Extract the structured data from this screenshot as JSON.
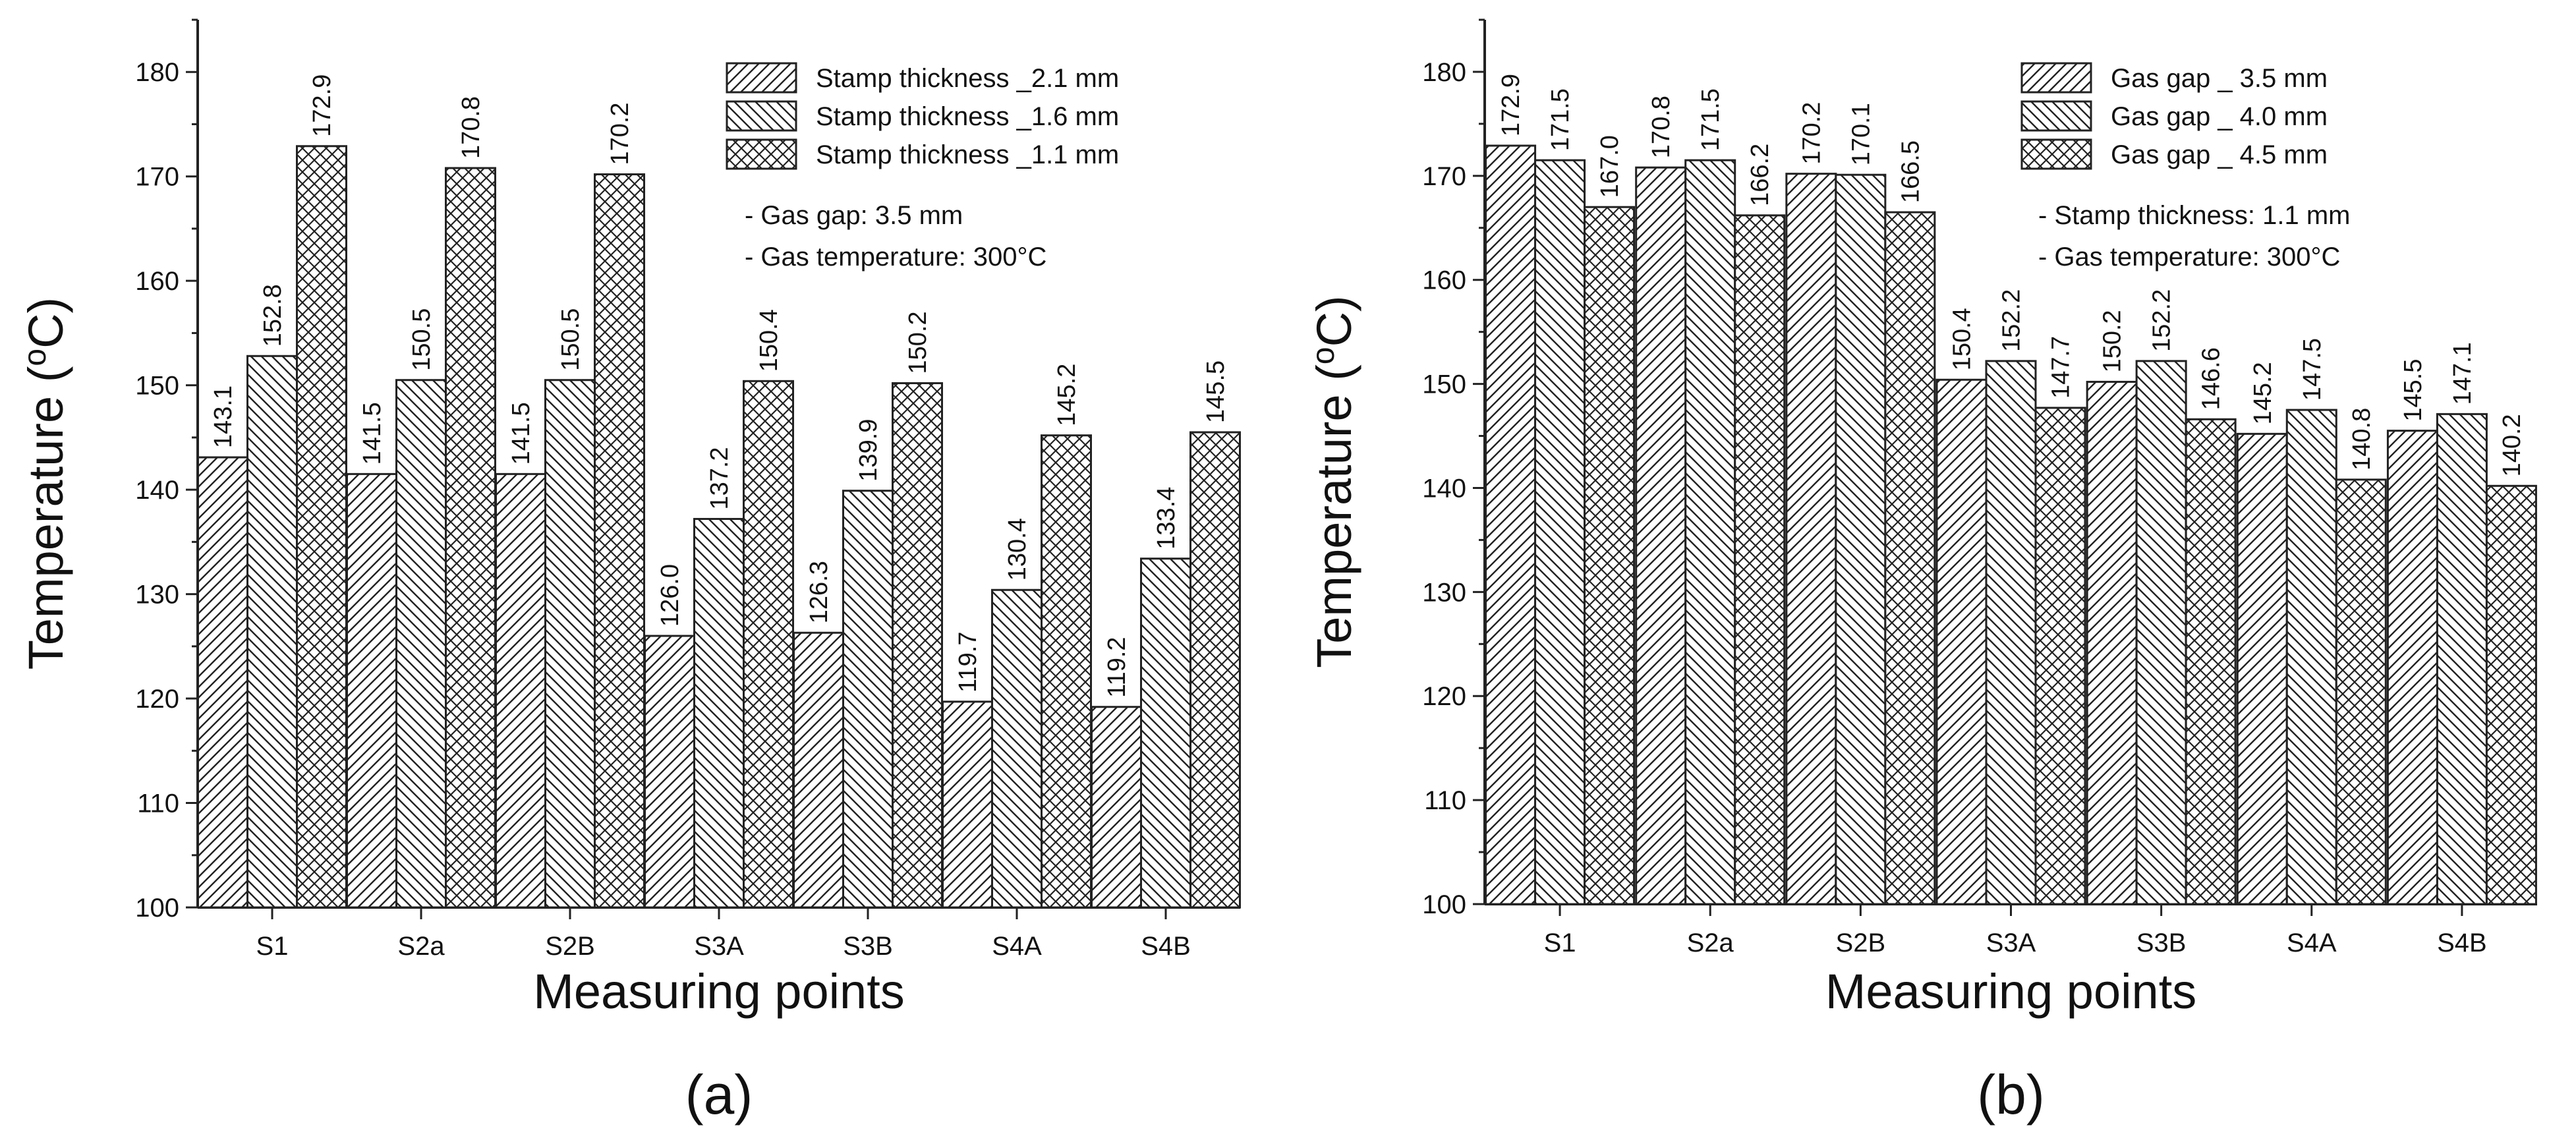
{
  "figure": {
    "panel_labels": [
      "(a)",
      "(b)"
    ]
  },
  "chart_data": [
    {
      "type": "bar",
      "panel": "(a)",
      "categories": [
        "S1",
        "S2a",
        "S2B",
        "S3A",
        "S3B",
        "S4A",
        "S4B"
      ],
      "series": [
        {
          "name": "Stamp thickness _2.1 mm",
          "pattern": "hatch-fwd",
          "values": [
            143.1,
            141.5,
            141.5,
            126.0,
            126.3,
            119.7,
            119.2
          ]
        },
        {
          "name": "Stamp thickness _1.6 mm",
          "pattern": "hatch-back",
          "values": [
            152.8,
            150.5,
            150.5,
            137.2,
            139.9,
            130.4,
            133.4
          ]
        },
        {
          "name": "Stamp thickness _1.1 mm",
          "pattern": "crosshatch",
          "values": [
            172.9,
            170.8,
            170.2,
            150.4,
            150.2,
            145.2,
            145.5
          ]
        }
      ],
      "data_labels": [
        [
          "143.1",
          "141.5",
          "141.5",
          "126.0",
          "126.3",
          "119.7",
          "119.2"
        ],
        [
          "152.8",
          "150.5",
          "150.5",
          "137.2",
          "139.9",
          "130.4",
          "133.4"
        ],
        [
          "172.9",
          "170.8",
          "170.2",
          "150.4",
          "150.2",
          "145.2",
          "145.5"
        ]
      ],
      "annotations": [
        "- Gas gap: 3.5 mm",
        "- Gas temperature: 300°C"
      ],
      "xlabel": "Measuring points",
      "ylabel": "Temperature (°C)",
      "ylim": [
        100,
        185
      ],
      "yticks": [
        "100",
        "110",
        "120",
        "130",
        "140",
        "150",
        "160",
        "170",
        "180"
      ],
      "legend_position": "top-right"
    },
    {
      "type": "bar",
      "panel": "(b)",
      "categories": [
        "S1",
        "S2a",
        "S2B",
        "S3A",
        "S3B",
        "S4A",
        "S4B"
      ],
      "series": [
        {
          "name": "Gas gap _ 3.5 mm",
          "pattern": "hatch-fwd",
          "values": [
            172.9,
            170.8,
            170.2,
            150.4,
            150.2,
            145.2,
            145.5
          ]
        },
        {
          "name": "Gas gap _ 4.0 mm",
          "pattern": "hatch-back",
          "values": [
            171.5,
            171.5,
            170.1,
            152.2,
            152.2,
            147.5,
            147.1
          ]
        },
        {
          "name": "Gas gap _ 4.5 mm",
          "pattern": "crosshatch",
          "values": [
            167.0,
            166.2,
            166.5,
            147.7,
            146.6,
            140.8,
            140.2
          ]
        }
      ],
      "data_labels": [
        [
          "172.9",
          "170.8",
          "170.2",
          "150.4",
          "150.2",
          "145.2",
          "145.5"
        ],
        [
          "171.5",
          "171.5",
          "170.1",
          "152.2",
          "152.2",
          "147.5",
          "147.1"
        ],
        [
          "167.0",
          "166.2",
          "166.5",
          "147.7",
          "146.6",
          "140.8",
          "140.2"
        ]
      ],
      "annotations": [
        "- Stamp thickness: 1.1 mm",
        "- Gas temperature: 300°C"
      ],
      "xlabel": "Measuring points",
      "ylabel": "Temperature (°C)",
      "ylim": [
        100,
        185
      ],
      "yticks": [
        "100",
        "110",
        "120",
        "130",
        "140",
        "150",
        "160",
        "170",
        "180"
      ],
      "legend_position": "top-right"
    }
  ]
}
